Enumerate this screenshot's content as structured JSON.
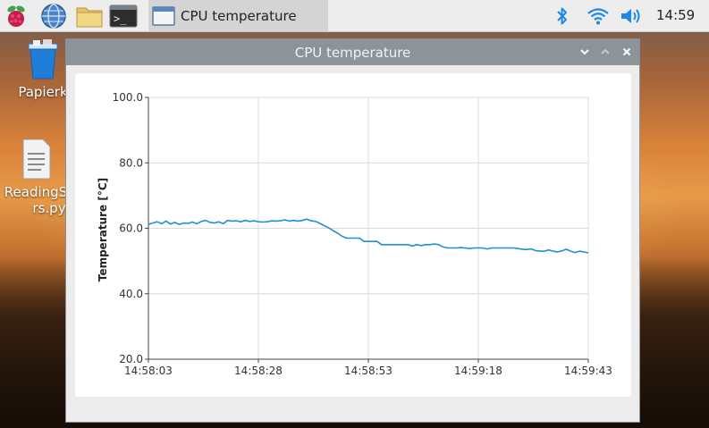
{
  "taskbar": {
    "launchers": [
      {
        "name": "raspberry-menu-icon"
      },
      {
        "name": "web-browser-icon"
      },
      {
        "name": "file-manager-icon"
      },
      {
        "name": "terminal-icon"
      }
    ],
    "task_button_label": "CPU temperature",
    "clock": "14:59"
  },
  "desktop": {
    "icons": [
      {
        "label": "Papierk",
        "icon": "trash-icon"
      },
      {
        "label_line1": "ReadingS",
        "label_line2": "rs.py",
        "icon": "text-file-icon"
      }
    ]
  },
  "window": {
    "title": "CPU temperature"
  },
  "colors": {
    "line": "#1f8fd6",
    "grid": "#dcdcdc",
    "titlebar": "#8c949a"
  },
  "chart_data": {
    "type": "line",
    "title": "",
    "xlabel": "",
    "ylabel": "Temperature [°C]",
    "ylim": [
      20,
      100
    ],
    "yticks": [
      "20.0",
      "40.0",
      "60.0",
      "80.0",
      "100.0"
    ],
    "ytick_values": [
      20,
      40,
      60,
      80,
      100
    ],
    "xlim_seconds": [
      0,
      100
    ],
    "xticks": [
      "14:58:03",
      "14:58:28",
      "14:58:53",
      "14:59:18",
      "14:59:43"
    ],
    "xtick_seconds": [
      0,
      25,
      50,
      75,
      100
    ],
    "grid": true,
    "series": [
      {
        "x": [
          0,
          1,
          2,
          3,
          4,
          5,
          6,
          7,
          8,
          9,
          10,
          11,
          12,
          13,
          14,
          15,
          16,
          17,
          18,
          19,
          20,
          21,
          22,
          23,
          24,
          25,
          26,
          27,
          28,
          29,
          30,
          31,
          32,
          33,
          34,
          35,
          36,
          37,
          38,
          39,
          40,
          41,
          42,
          43,
          44,
          45,
          46,
          47,
          48,
          49,
          50,
          51,
          52,
          53,
          54,
          55,
          56,
          57,
          58,
          59,
          60,
          61,
          62,
          63,
          64,
          65,
          66,
          67,
          68,
          69,
          70,
          71,
          72,
          73,
          74,
          75,
          76,
          77,
          78,
          79,
          80,
          81,
          82,
          83,
          84,
          85,
          86,
          87,
          88,
          89,
          90,
          91,
          92,
          93,
          94,
          95,
          96,
          97,
          98,
          99,
          100
        ],
        "y": [
          61.2,
          61.6,
          62.0,
          61.4,
          62.2,
          61.3,
          61.8,
          61.2,
          61.6,
          61.5,
          61.9,
          61.4,
          62.1,
          62.4,
          61.8,
          61.6,
          62.0,
          61.4,
          62.4,
          62.2,
          62.3,
          62.0,
          62.4,
          62.1,
          62.3,
          62.0,
          61.9,
          62.0,
          62.3,
          62.2,
          62.3,
          62.6,
          62.2,
          62.4,
          62.2,
          62.4,
          62.8,
          62.3,
          62.1,
          61.5,
          60.8,
          60.1,
          59.3,
          58.5,
          57.6,
          57.0,
          57.0,
          57.0,
          57.0,
          56.0,
          56.0,
          56.0,
          56.0,
          55.0,
          55.0,
          55.0,
          55.0,
          55.0,
          55.0,
          55.0,
          54.6,
          55.0,
          54.7,
          55.0,
          55.0,
          55.2,
          55.0,
          54.3,
          54.0,
          54.0,
          54.0,
          54.1,
          54.0,
          53.8,
          54.0,
          54.0,
          54.0,
          53.7,
          54.0,
          54.0,
          54.0,
          54.0,
          54.0,
          54.0,
          53.8,
          53.6,
          53.5,
          53.7,
          53.2,
          53.0,
          53.0,
          53.4,
          53.0,
          52.8,
          53.1,
          53.6,
          53.0,
          52.6,
          53.0,
          52.8,
          52.5
        ]
      }
    ]
  }
}
